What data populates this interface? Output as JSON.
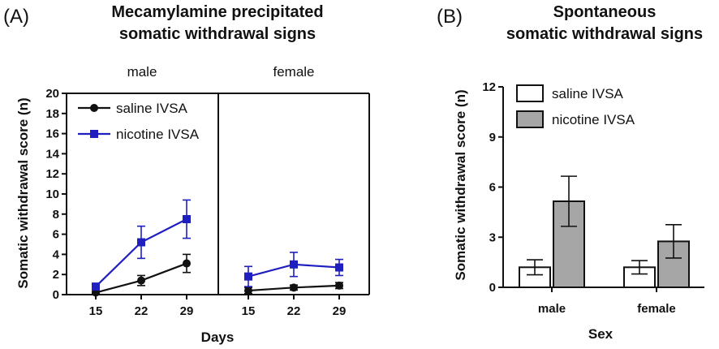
{
  "panel_a_label": "(A)",
  "panel_b_label": "(B)",
  "chart_data": [
    {
      "type": "line",
      "title": "Mecamylamine precipitated somatic withdrawal signs",
      "title_lines": [
        "Mecamylamine precipitated",
        "somatic withdrawal signs"
      ],
      "xlabel": "Days",
      "ylabel": "Somatic withdrawal score (n)",
      "ylim": [
        0,
        20
      ],
      "yticks": [
        0,
        2,
        4,
        6,
        8,
        10,
        12,
        14,
        16,
        18,
        20
      ],
      "facets": [
        {
          "name": "male",
          "x": [
            15,
            22,
            29
          ],
          "series": [
            {
              "name": "saline IVSA",
              "color": "#111111",
              "marker": "circle",
              "values": [
                0.2,
                1.4,
                3.1
              ],
              "errors": [
                0.1,
                0.5,
                0.9
              ]
            },
            {
              "name": "nicotine IVSA",
              "color": "#1f1fbf",
              "marker": "square",
              "values": [
                0.8,
                5.2,
                7.5
              ],
              "errors": [
                0.3,
                1.6,
                1.9
              ]
            }
          ]
        },
        {
          "name": "female",
          "x": [
            15,
            22,
            29
          ],
          "series": [
            {
              "name": "saline IVSA",
              "color": "#111111",
              "marker": "circle",
              "values": [
                0.4,
                0.7,
                0.9
              ],
              "errors": [
                0.3,
                0.25,
                0.3
              ]
            },
            {
              "name": "nicotine IVSA",
              "color": "#1f1fbf",
              "marker": "square",
              "values": [
                1.8,
                3.0,
                2.7
              ],
              "errors": [
                1.0,
                1.2,
                0.8
              ]
            }
          ]
        }
      ],
      "legend": [
        {
          "name": "saline IVSA",
          "color": "#111111",
          "marker": "circle"
        },
        {
          "name": "nicotine IVSA",
          "color": "#1f1fbf",
          "marker": "square"
        }
      ]
    },
    {
      "type": "bar",
      "title": "Spontaneous somatic withdrawal signs",
      "title_lines": [
        "Spontaneous",
        "somatic withdrawal signs"
      ],
      "xlabel": "Sex",
      "ylabel": "Somatic withdrawal score (n)",
      "ylim": [
        0,
        12
      ],
      "yticks": [
        0,
        3,
        6,
        9,
        12
      ],
      "categories": [
        "male",
        "female"
      ],
      "series": [
        {
          "name": "saline IVSA",
          "color": "#ffffff",
          "values": [
            1.2,
            1.2
          ],
          "errors": [
            0.45,
            0.4
          ]
        },
        {
          "name": "nicotine IVSA",
          "color": "#a6a6a6",
          "values": [
            5.15,
            2.75
          ],
          "errors": [
            1.5,
            1.0
          ]
        }
      ]
    }
  ]
}
